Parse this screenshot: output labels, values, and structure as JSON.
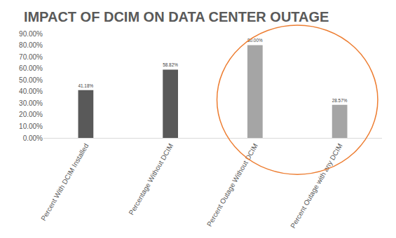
{
  "chart_data": {
    "type": "bar",
    "title": "IMPACT OF DCIM ON DATA CENTER OUTAGE",
    "categories": [
      "Percent With DCIM Installed",
      "Percentage Without DCIM",
      "Percent Outage Without DCIM",
      "Percent Outage with any DCIM"
    ],
    "values": [
      41.18,
      58.82,
      80,
      28.57
    ],
    "value_labels": [
      "41.18%",
      "58.82%",
      "80.00%",
      "28.57%"
    ],
    "colors": [
      "#595959",
      "#595959",
      "#a5a5a5",
      "#a5a5a5"
    ],
    "ylim": [
      0,
      90
    ],
    "yticks": [
      {
        "value": 0,
        "label": "0.00%"
      },
      {
        "value": 10,
        "label": "10.00%"
      },
      {
        "value": 20,
        "label": "20.00%"
      },
      {
        "value": 30,
        "label": "30.00%"
      },
      {
        "value": 40,
        "label": "40.00%"
      },
      {
        "value": 50,
        "label": "50.00%"
      },
      {
        "value": 60,
        "label": "60.00%"
      },
      {
        "value": 70,
        "label": "70.00%"
      },
      {
        "value": 80,
        "label": "80.00%"
      },
      {
        "value": 90,
        "label": "90.00%"
      }
    ],
    "grid": false,
    "data_labels": true
  }
}
